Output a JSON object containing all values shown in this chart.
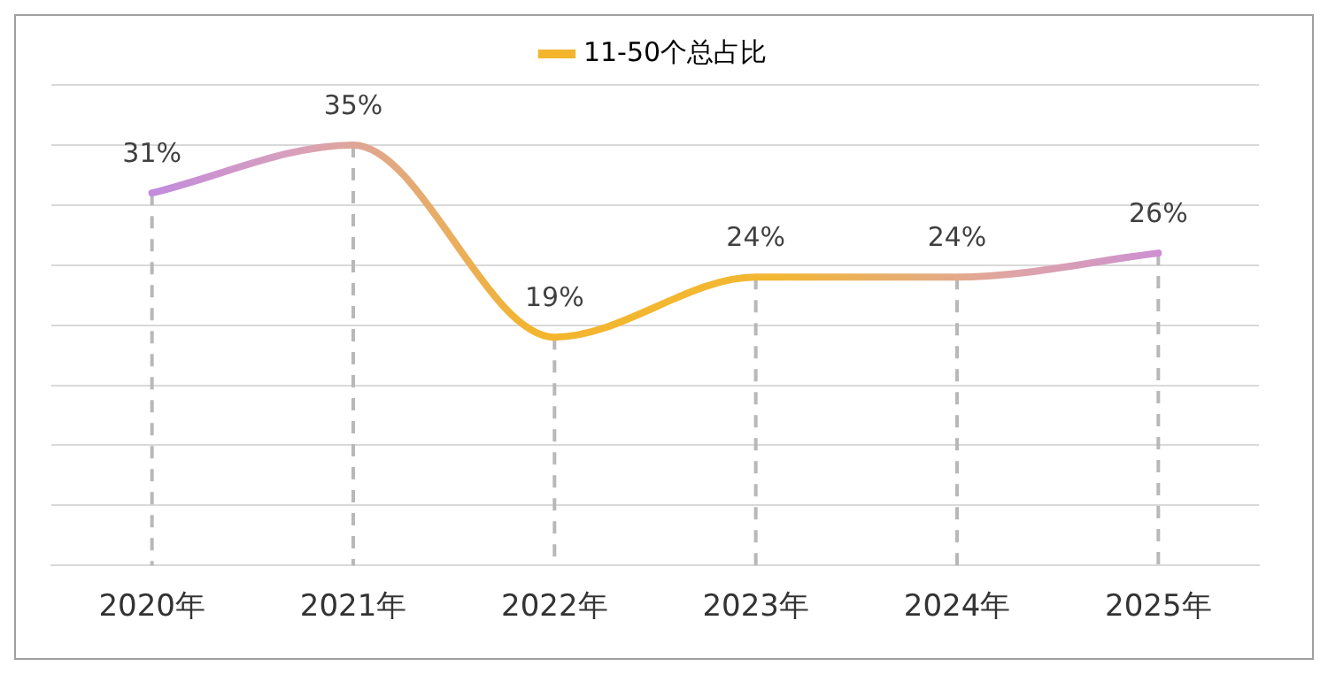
{
  "chart_data": {
    "type": "line",
    "categories": [
      "2020年",
      "2021年",
      "2022年",
      "2023年",
      "2024年",
      "2025年"
    ],
    "series": [
      {
        "name": "11-50个总占比",
        "colors": [
          "#b27cf2",
          "#d8a0bc",
          "#f3b52c",
          "#f2b733",
          "#dea4a8",
          "#c182ef"
        ],
        "values": [
          31,
          35,
          19,
          24,
          24,
          26
        ],
        "value_labels": [
          "31%",
          "35%",
          "19%",
          "24%",
          "24%",
          "26%"
        ]
      }
    ],
    "tick_labels": "x",
    "grid": true,
    "legend": "top",
    "marker": "none",
    "line_style": "solid"
  }
}
